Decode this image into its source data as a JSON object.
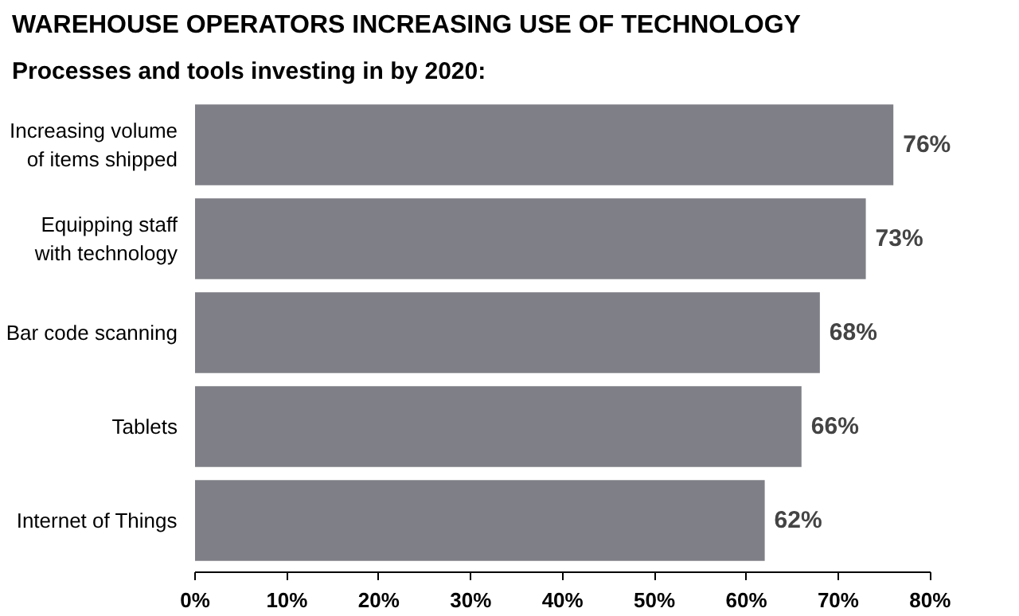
{
  "chart_data": {
    "type": "bar",
    "orientation": "horizontal",
    "title": "WAREHOUSE OPERATORS INCREASING USE OF TECHNOLOGY",
    "subtitle": "Processes and tools investing in by 2020:",
    "categories": [
      "Increasing volume\nof items shipped",
      "Equipping staff\nwith technology",
      "Bar code scanning",
      "Tablets",
      "Internet of Things"
    ],
    "values": [
      76,
      73,
      68,
      66,
      62
    ],
    "value_labels": [
      "76%",
      "73%",
      "68%",
      "66%",
      "62%"
    ],
    "color": "#7f7f87",
    "xlim": [
      0,
      80
    ],
    "xticks": [
      {
        "value": 0,
        "label": "0%"
      },
      {
        "value": 10,
        "label": "10%"
      },
      {
        "value": 20,
        "label": "20%"
      },
      {
        "value": 30,
        "label": "30%"
      },
      {
        "value": 40,
        "label": "40%"
      },
      {
        "value": 50,
        "label": "50%"
      },
      {
        "value": 60,
        "label": "60%"
      },
      {
        "value": 70,
        "label": "70%"
      },
      {
        "value": 80,
        "label": "80%"
      }
    ],
    "grid": false
  }
}
